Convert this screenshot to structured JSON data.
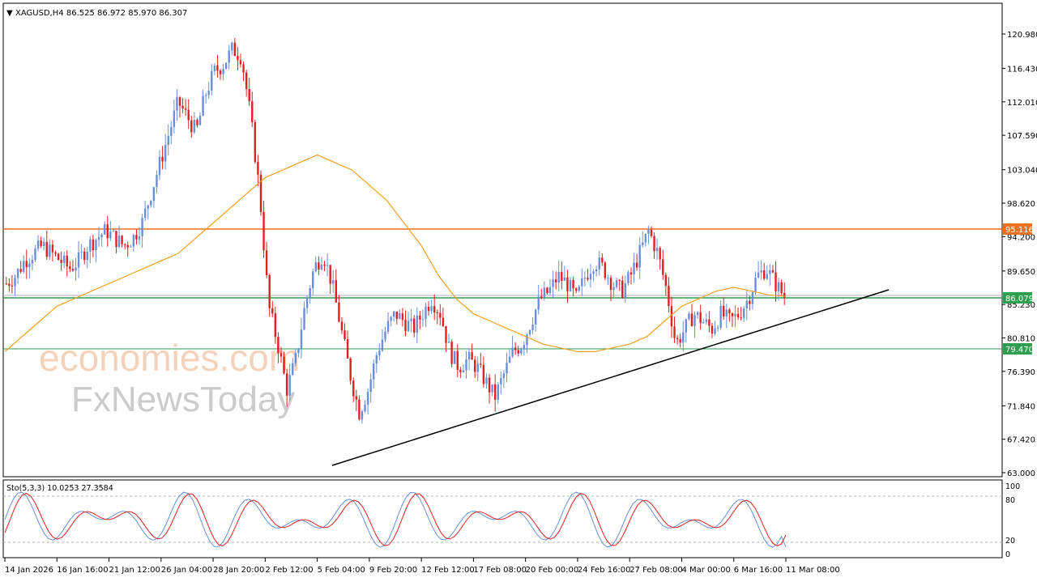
{
  "header": {
    "symbol_line": "XAGUSD,H4  86.525 86.972 85.970 86.307"
  },
  "watermark": {
    "line1": "economies.com",
    "line2": "FxNewsToday"
  },
  "colors": {
    "bull": "#6a8fd8",
    "bear": "#e02020",
    "ma": "#f0a020",
    "resistance": "#f07020",
    "support_green": "#2e9e4f",
    "current_price": "#2e9e4f",
    "trendline": "#000000",
    "stoch_main": "#6a8fd8",
    "stoch_signal": "#e02020"
  },
  "price_axis": {
    "ticks": [
      "120.980",
      "116.430",
      "112.010",
      "107.590",
      "103.040",
      "98.620",
      "94.200",
      "89.650",
      "85.230",
      "80.810",
      "76.390",
      "71.840",
      "67.420",
      "63.000"
    ],
    "tick_values": [
      120.98,
      116.43,
      112.01,
      107.59,
      103.04,
      98.62,
      94.2,
      89.65,
      85.23,
      80.81,
      76.39,
      71.84,
      67.42,
      63.0
    ]
  },
  "level_labels": {
    "resistance": "95.116",
    "current": "86.079",
    "support": "79.470"
  },
  "time_axis": {
    "labels": [
      "14 Jan 2026",
      "16 Jan 16:00",
      "21 Jan 12:00",
      "26 Jan 04:00",
      "28 Jan 20:00",
      "2 Feb 12:00",
      "5 Feb 04:00",
      "9 Feb 20:00",
      "12 Feb 12:00",
      "17 Feb 08:00",
      "20 Feb 00:00",
      "24 Feb 16:00",
      "27 Feb 08:00",
      "4 Mar 00:00",
      "6 Mar 16:00",
      "11 Mar 08:00"
    ]
  },
  "stoch": {
    "label": "Sto(5,3,3) 10.0253 27.3584",
    "ticks": [
      "100",
      "80",
      "20",
      "0"
    ]
  },
  "chart_data": {
    "type": "line",
    "title": "XAGUSD,H4",
    "ohlc_last": {
      "open": 86.525,
      "high": 86.972,
      "low": 85.97,
      "close": 86.307
    },
    "x_labels": [
      "14 Jan 2026",
      "16 Jan 16:00",
      "21 Jan 12:00",
      "26 Jan 04:00",
      "28 Jan 20:00",
      "2 Feb 12:00",
      "5 Feb 04:00",
      "9 Feb 20:00",
      "12 Feb 12:00",
      "17 Feb 08:00",
      "20 Feb 00:00",
      "24 Feb 16:00",
      "27 Feb 08:00",
      "4 Mar 00:00",
      "6 Mar 16:00",
      "11 Mar 08:00"
    ],
    "ylim": [
      63.0,
      120.98
    ],
    "series": [
      {
        "name": "XAGUSD,H4",
        "values": [
          88,
          89,
          91,
          92,
          93,
          92,
          91,
          90,
          91,
          93,
          94,
          95,
          94,
          93,
          94,
          96,
          100,
          104,
          108,
          112,
          110,
          108,
          113,
          116,
          117,
          119,
          118,
          110,
          100,
          85,
          80,
          74,
          78,
          85,
          90,
          92,
          88,
          82,
          76,
          71,
          74,
          79,
          82,
          84,
          83,
          82,
          84,
          86,
          84,
          79,
          77,
          78,
          77,
          75,
          73,
          76,
          79,
          80,
          83,
          86,
          87,
          89,
          88,
          86,
          89,
          91,
          90,
          88,
          87,
          89,
          92,
          95,
          92,
          87,
          80,
          82,
          84,
          83,
          82,
          84,
          83,
          84,
          86,
          89,
          90,
          88,
          86.3
        ]
      },
      {
        "name": "MA",
        "values": [
          79,
          81,
          83,
          85,
          86,
          87,
          88,
          89,
          90,
          91,
          92,
          94,
          96,
          98,
          100,
          102,
          103,
          104,
          105,
          104,
          103,
          101,
          99,
          96,
          93,
          89,
          86,
          84,
          83,
          82,
          81,
          80,
          79.5,
          79,
          79,
          79.5,
          80,
          81,
          83,
          85,
          86,
          87,
          87.5,
          87,
          86.5,
          86.3
        ]
      }
    ],
    "levels": {
      "resistance": 95.116,
      "current": 86.079,
      "support": 79.47
    },
    "trendline": {
      "from_value": 64.1,
      "to_value": 87.5
    },
    "stochastic": {
      "name": "Sto(5,3,3)",
      "main": 10.0253,
      "signal": 27.3584,
      "ylim": [
        0,
        100
      ],
      "levels": [
        80,
        20
      ]
    }
  }
}
